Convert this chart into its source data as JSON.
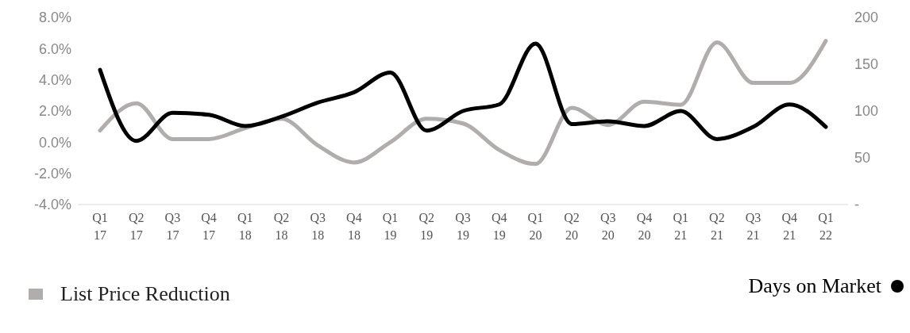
{
  "chart_data": {
    "type": "line",
    "categories": [
      "Q1 17",
      "Q2 17",
      "Q3 17",
      "Q4 17",
      "Q1 18",
      "Q2 18",
      "Q3 18",
      "Q4 18",
      "Q1 19",
      "Q2 19",
      "Q3 19",
      "Q4 19",
      "Q1 20",
      "Q2 20",
      "Q3 20",
      "Q4 20",
      "Q1 21",
      "Q2 21",
      "Q3 21",
      "Q4 21",
      "Q1 22"
    ],
    "series": [
      {
        "name": "List Price Reduction",
        "color": "#b1adac",
        "values": [
          0.75,
          2.5,
          0.2,
          0.2,
          0.9,
          1.5,
          -0.2,
          -1.3,
          0.0,
          1.5,
          1.2,
          -0.5,
          -1.4,
          2.2,
          1.1,
          2.6,
          2.4,
          6.4,
          3.8,
          3.8,
          6.5
        ]
      },
      {
        "name": "Days on Market",
        "color": "#000000",
        "axis": "y2",
        "values": [
          144,
          68,
          98,
          96,
          84,
          94,
          109,
          120,
          141,
          79,
          100,
          107,
          172,
          86,
          89,
          84,
          100,
          70,
          83,
          107,
          83
        ]
      }
    ],
    "ylim": [
      -4,
      8
    ],
    "yticks": [
      {
        "value": -4,
        "label": "-4.0%"
      },
      {
        "value": -2,
        "label": "-2.0%"
      },
      {
        "value": 0,
        "label": "0.0%"
      },
      {
        "value": 2,
        "label": "2.0%"
      },
      {
        "value": 4,
        "label": "4.0%"
      },
      {
        "value": 6,
        "label": "6.0%"
      },
      {
        "value": 8,
        "label": "8.0%"
      }
    ],
    "y2lim": [
      0,
      200
    ],
    "y2ticks": [
      {
        "value": 0,
        "label": "-"
      },
      50,
      100,
      150,
      200
    ],
    "legend": "bottom",
    "marker": "none",
    "line_style": "solid"
  }
}
